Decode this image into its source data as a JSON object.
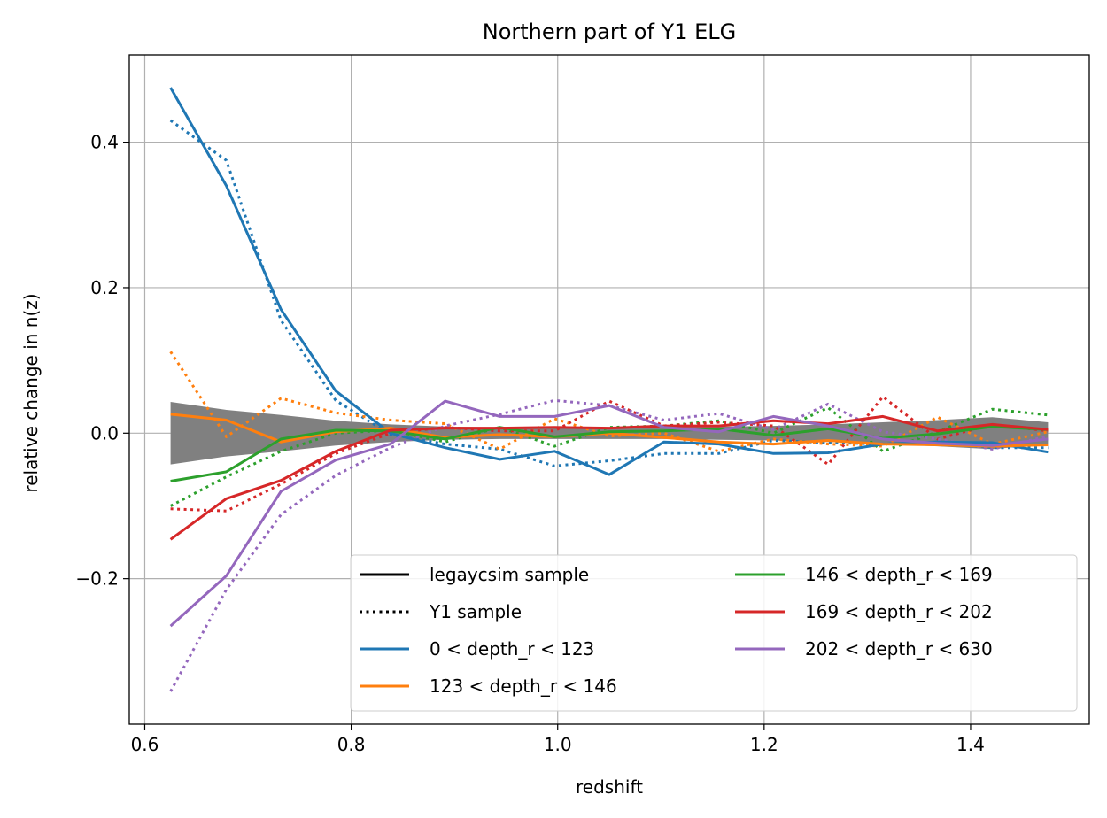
{
  "chart_data": {
    "type": "line",
    "title": "Northern part of Y1 ELG",
    "xlabel": "redshift",
    "ylabel": "relative change in n(z)",
    "xlim": [
      0.585,
      1.515
    ],
    "ylim": [
      -0.4,
      0.52
    ],
    "xticks": [
      0.6,
      0.8,
      1.0,
      1.2,
      1.4
    ],
    "xtick_labels": [
      "0.6",
      "0.8",
      "1.0",
      "1.2",
      "1.4"
    ],
    "yticks": [
      -0.2,
      0.0,
      0.2,
      0.4
    ],
    "ytick_labels": [
      "−0.2",
      "0.0",
      "0.2",
      "0.4"
    ],
    "grid": true,
    "legend_placement": "lower-right",
    "legend_columns": 2,
    "x": [
      0.625,
      0.679,
      0.732,
      0.785,
      0.838,
      0.891,
      0.944,
      0.997,
      1.05,
      1.103,
      1.156,
      1.209,
      1.262,
      1.315,
      1.368,
      1.421,
      1.475
    ],
    "band": {
      "color": "#808080",
      "upper": [
        0.043,
        0.032,
        0.025,
        0.017,
        0.012,
        0.009,
        0.008,
        0.008,
        0.008,
        0.008,
        0.009,
        0.01,
        0.012,
        0.015,
        0.018,
        0.022,
        0.015
      ],
      "lower": [
        -0.043,
        -0.032,
        -0.025,
        -0.017,
        -0.012,
        -0.009,
        -0.008,
        -0.008,
        -0.008,
        -0.008,
        -0.009,
        -0.01,
        -0.012,
        -0.015,
        -0.018,
        -0.022,
        -0.015
      ]
    },
    "legend": [
      {
        "label": "legaycsim sample",
        "color": "#000000",
        "style": "solid"
      },
      {
        "label": "Y1 sample",
        "color": "#000000",
        "style": "dotted"
      },
      {
        "label": "0 < depth_r < 123",
        "color": "#1f77b4",
        "style": "solid"
      },
      {
        "label": "123 < depth_r < 146",
        "color": "#ff7f0e",
        "style": "solid"
      },
      {
        "label": "146 < depth_r < 169",
        "color": "#2ca02c",
        "style": "solid"
      },
      {
        "label": "169 < depth_r < 202",
        "color": "#d62728",
        "style": "solid"
      },
      {
        "label": "202 < depth_r < 630",
        "color": "#9467bd",
        "style": "solid"
      }
    ],
    "series": [
      {
        "bin": "0 < depth_r < 123",
        "sample": "legaycsim sample",
        "color": "#1f77b4",
        "style": "solid",
        "values": [
          0.475,
          0.34,
          0.17,
          0.058,
          0.0,
          -0.02,
          -0.036,
          -0.025,
          -0.057,
          -0.012,
          -0.015,
          -0.028,
          -0.027,
          -0.015,
          -0.012,
          -0.013,
          -0.026
        ]
      },
      {
        "bin": "0 < depth_r < 123",
        "sample": "Y1 sample",
        "color": "#1f77b4",
        "style": "dotted",
        "values": [
          0.43,
          0.375,
          0.155,
          0.045,
          -0.002,
          -0.015,
          -0.022,
          -0.045,
          -0.038,
          -0.028,
          -0.028,
          -0.01,
          -0.013,
          -0.015,
          -0.012,
          -0.02,
          -0.02
        ]
      },
      {
        "bin": "123 < depth_r < 146",
        "sample": "legaycsim sample",
        "color": "#ff7f0e",
        "style": "solid",
        "values": [
          0.026,
          0.018,
          -0.012,
          0.002,
          0.007,
          -0.006,
          -0.002,
          -0.005,
          0.0,
          -0.006,
          -0.012,
          -0.015,
          -0.01,
          -0.015,
          -0.016,
          -0.018,
          -0.016
        ]
      },
      {
        "bin": "123 < depth_r < 146",
        "sample": "Y1 sample",
        "color": "#ff7f0e",
        "style": "dotted",
        "values": [
          0.112,
          -0.005,
          0.048,
          0.028,
          0.018,
          0.013,
          -0.022,
          0.02,
          -0.004,
          0.0,
          -0.025,
          -0.008,
          -0.015,
          -0.018,
          0.022,
          -0.015,
          0.002
        ]
      },
      {
        "bin": "146 < depth_r < 169",
        "sample": "legaycsim sample",
        "color": "#2ca02c",
        "style": "solid",
        "values": [
          -0.066,
          -0.053,
          -0.008,
          0.004,
          0.003,
          -0.008,
          0.008,
          -0.005,
          0.002,
          0.003,
          0.006,
          -0.003,
          0.006,
          -0.007,
          -0.001,
          0.009,
          0.005
        ]
      },
      {
        "bin": "146 < depth_r < 169",
        "sample": "Y1 sample",
        "color": "#2ca02c",
        "style": "dotted",
        "values": [
          -0.1,
          -0.06,
          -0.025,
          0.0,
          0.004,
          -0.012,
          0.008,
          -0.018,
          0.008,
          0.01,
          0.017,
          0.0,
          0.035,
          -0.025,
          0.002,
          0.033,
          0.025
        ]
      },
      {
        "bin": "169 < depth_r < 202",
        "sample": "legaycsim sample",
        "color": "#d62728",
        "style": "solid",
        "values": [
          -0.146,
          -0.09,
          -0.065,
          -0.025,
          0.004,
          0.007,
          0.007,
          0.008,
          0.007,
          0.01,
          0.01,
          0.017,
          0.013,
          0.023,
          0.003,
          0.012,
          0.005
        ]
      },
      {
        "bin": "169 < depth_r < 202",
        "sample": "Y1 sample",
        "color": "#d62728",
        "style": "dotted",
        "values": [
          -0.104,
          -0.107,
          -0.07,
          -0.028,
          0.0,
          0.008,
          0.003,
          0.003,
          0.044,
          0.01,
          0.015,
          0.01,
          -0.043,
          0.05,
          -0.008,
          0.012,
          0.003
        ]
      },
      {
        "bin": "202 < depth_r < 630",
        "sample": "legaycsim sample",
        "color": "#9467bd",
        "style": "solid",
        "values": [
          -0.265,
          -0.196,
          -0.08,
          -0.037,
          -0.015,
          0.044,
          0.023,
          0.023,
          0.038,
          0.008,
          0.002,
          0.023,
          0.01,
          -0.008,
          -0.014,
          -0.017,
          -0.008
        ]
      },
      {
        "bin": "202 < depth_r < 630",
        "sample": "Y1 sample",
        "color": "#9467bd",
        "style": "dotted",
        "values": [
          -0.355,
          -0.215,
          -0.112,
          -0.058,
          -0.02,
          0.01,
          0.026,
          0.045,
          0.038,
          0.018,
          0.027,
          0.005,
          0.04,
          0.002,
          -0.008,
          -0.022,
          -0.004
        ]
      }
    ]
  }
}
